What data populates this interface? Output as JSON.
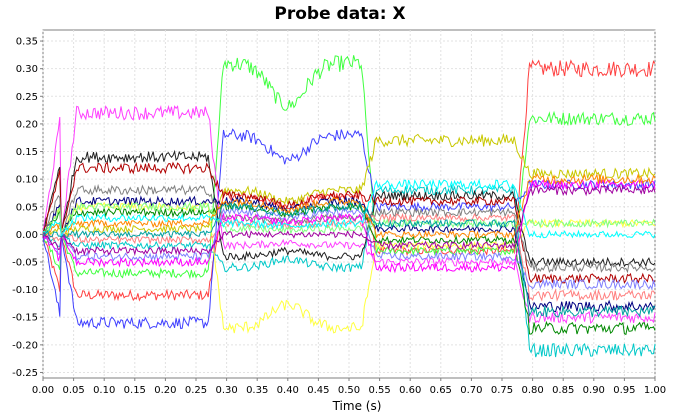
{
  "chart_data": {
    "type": "line",
    "title": "Probe data: X",
    "xlabel": "Time (s)",
    "ylabel": "",
    "xlim": [
      0.0,
      1.0
    ],
    "ylim": [
      -0.26,
      0.37
    ],
    "grid": true,
    "legend": "none",
    "x_ticks": [
      "0.00",
      "0.05",
      "0.10",
      "0.15",
      "0.20",
      "0.25",
      "0.30",
      "0.35",
      "0.40",
      "0.45",
      "0.50",
      "0.55",
      "0.60",
      "0.65",
      "0.70",
      "0.75",
      "0.80",
      "0.85",
      "0.90",
      "0.95",
      "1.00"
    ],
    "y_ticks": [
      "0.35",
      "0.30",
      "0.25",
      "0.20",
      "0.15",
      "0.10",
      "0.05",
      "0.00",
      "-0.05",
      "-0.10",
      "-0.15",
      "-0.20",
      "-0.25"
    ],
    "phase_boundaries_s": [
      0.0,
      0.27,
      0.52,
      0.77,
      1.0
    ],
    "series": [
      {
        "color": "#ff4040",
        "phase_levels": [
          -0.11,
          0.07,
          -0.03,
          0.3
        ]
      },
      {
        "color": "#40ff40",
        "phase_levels": [
          -0.07,
          0.31,
          -0.03,
          0.21
        ]
      },
      {
        "color": "#4040ff",
        "phase_levels": [
          -0.16,
          0.18,
          0.05,
          0.09
        ]
      },
      {
        "color": "#c8c800",
        "phase_levels": [
          0.01,
          0.08,
          0.17,
          0.11
        ]
      },
      {
        "color": "#ff40ff",
        "phase_levels": [
          0.22,
          -0.02,
          -0.05,
          -0.15
        ]
      },
      {
        "color": "#00c8c8",
        "phase_levels": [
          -0.02,
          -0.06,
          0.08,
          -0.21
        ]
      },
      {
        "color": "#ffff40",
        "phase_levels": [
          0.05,
          -0.17,
          -0.02,
          0.02
        ]
      },
      {
        "color": "#202020",
        "phase_levels": [
          0.14,
          -0.04,
          0.07,
          -0.05
        ]
      },
      {
        "color": "#b00000",
        "phase_levels": [
          0.12,
          0.07,
          0.06,
          -0.08
        ]
      },
      {
        "color": "#008800",
        "phase_levels": [
          0.04,
          0.05,
          -0.01,
          -0.17
        ]
      },
      {
        "color": "#000080",
        "phase_levels": [
          0.06,
          0.06,
          0.01,
          -0.13
        ]
      },
      {
        "color": "#808080",
        "phase_levels": [
          0.08,
          0.03,
          0.04,
          -0.06
        ]
      },
      {
        "color": "#ff8080",
        "phase_levels": [
          -0.01,
          0.02,
          0.03,
          -0.11
        ]
      },
      {
        "color": "#80ff80",
        "phase_levels": [
          0.05,
          0.01,
          0.02,
          0.02
        ]
      },
      {
        "color": "#8080ff",
        "phase_levels": [
          -0.04,
          0.04,
          -0.04,
          -0.09
        ]
      },
      {
        "color": "#ff00ff",
        "phase_levels": [
          -0.05,
          0.03,
          -0.06,
          0.09
        ]
      },
      {
        "color": "#ff8800",
        "phase_levels": [
          0.02,
          0.06,
          0.0,
          0.1
        ]
      },
      {
        "color": "#00ffff",
        "phase_levels": [
          0.03,
          0.02,
          0.09,
          0.0
        ]
      },
      {
        "color": "#a000a0",
        "phase_levels": [
          -0.03,
          0.0,
          -0.02,
          0.08
        ]
      },
      {
        "color": "#00a0a0",
        "phase_levels": [
          0.0,
          0.05,
          0.02,
          -0.14
        ]
      }
    ]
  }
}
